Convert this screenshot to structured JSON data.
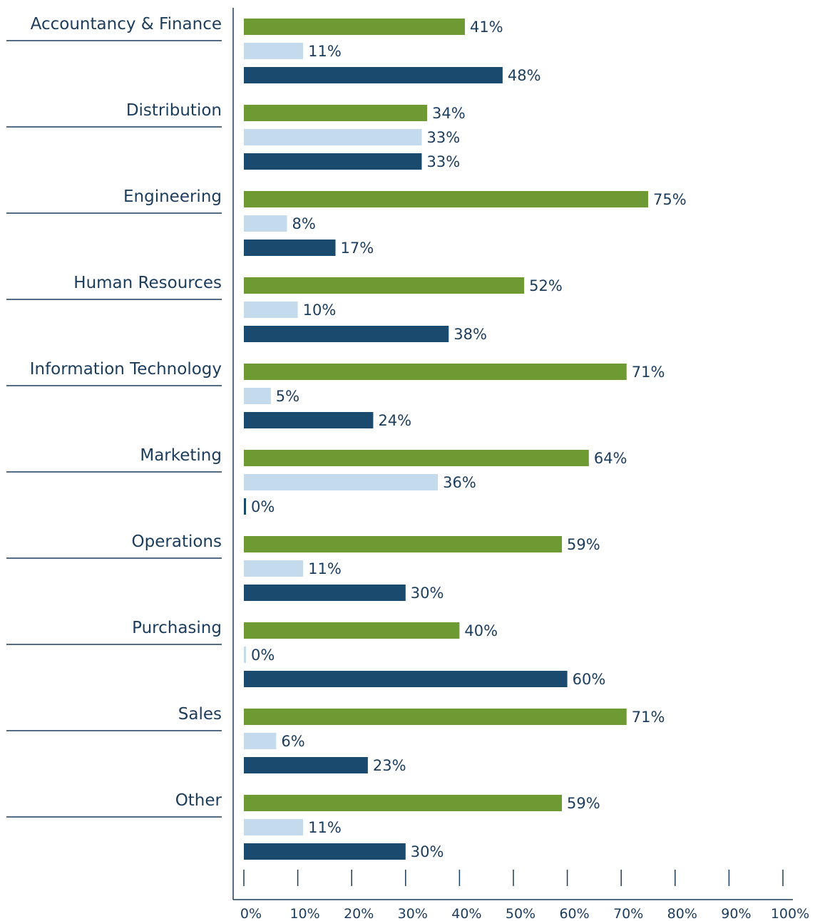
{
  "chart_data": {
    "type": "bar",
    "orientation": "horizontal",
    "categories": [
      "Accountancy & Finance",
      "Distribution",
      "Engineering",
      "Human Resources",
      "Information Technology",
      "Marketing",
      "Operations",
      "Purchasing",
      "Sales",
      "Other"
    ],
    "series": [
      {
        "color": "#6e9a34",
        "values": [
          41,
          34,
          75,
          52,
          71,
          64,
          59,
          40,
          71,
          59
        ],
        "labels": [
          "41%",
          "34%",
          "75%",
          "52%",
          "71%",
          "64%",
          "59%",
          "40%",
          "71%",
          "59%"
        ]
      },
      {
        "color": "#c3dbed",
        "values": [
          11,
          33,
          8,
          10,
          5,
          36,
          11,
          0,
          6,
          11
        ],
        "labels": [
          "11%",
          "33%",
          "8%",
          "10%",
          "5%",
          "36%",
          "11%",
          "0%",
          "6%",
          "11%"
        ]
      },
      {
        "color": "#1a4a6e",
        "values": [
          48,
          33,
          17,
          38,
          24,
          0,
          30,
          60,
          23,
          30
        ],
        "labels": [
          "48%",
          "33%",
          "17%",
          "38%",
          "24%",
          "0%",
          "30%",
          "60%",
          "23%",
          "30%"
        ]
      }
    ],
    "xlim": [
      0,
      100
    ],
    "x_ticks": [
      0,
      10,
      20,
      30,
      40,
      50,
      60,
      70,
      80,
      90,
      100
    ],
    "x_tick_labels": [
      "0%",
      "10%",
      "20%",
      "30%",
      "40%",
      "50%",
      "60%",
      "70%",
      "80%",
      "90%",
      "100%"
    ],
    "grid": false,
    "legend": "none",
    "text_color": "#1c3c5c",
    "axis_color": "#1c3c5c"
  }
}
